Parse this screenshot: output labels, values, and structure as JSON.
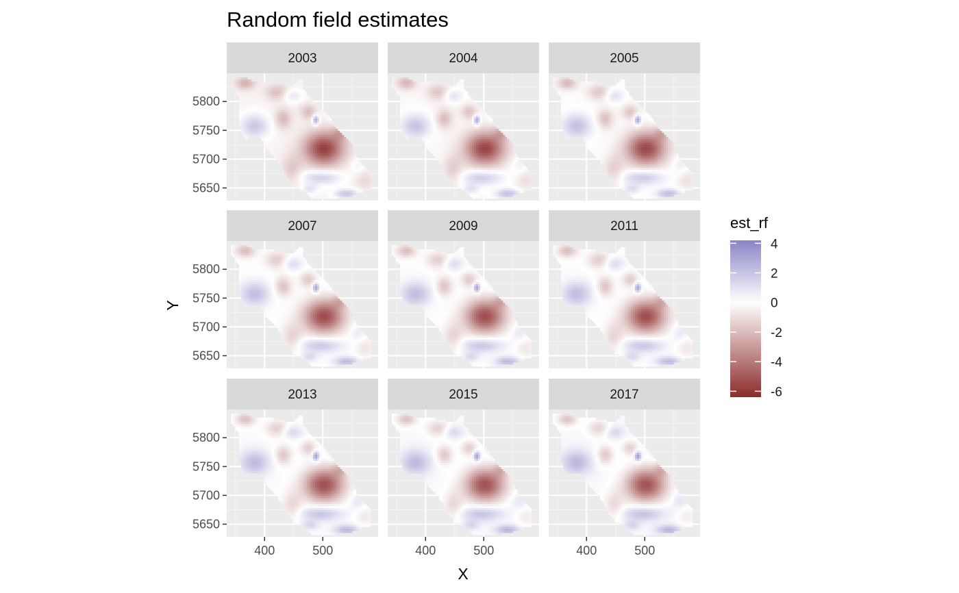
{
  "chart_data": {
    "type": "heatmap",
    "title": "Random field estimates",
    "xlabel": "X",
    "ylabel": "Y",
    "facets": [
      "2003",
      "2004",
      "2005",
      "2007",
      "2009",
      "2011",
      "2013",
      "2015",
      "2017"
    ],
    "xlim": [
      335,
      595
    ],
    "ylim": [
      5628,
      5849
    ],
    "x_ticks": [
      400,
      500
    ],
    "x_tick_labels": [
      "400",
      "500"
    ],
    "y_ticks": [
      5650,
      5700,
      5750,
      5800
    ],
    "y_tick_labels": [
      "5650",
      "5700",
      "5750",
      "5800"
    ],
    "grid": true,
    "legend": {
      "title": "est_rf",
      "position": "right",
      "range": [
        -6.4,
        4.2
      ],
      "ticks": [
        4,
        2,
        0,
        -2,
        -4,
        -6
      ],
      "tick_labels": [
        "4",
        "2",
        "0",
        "-2",
        "-4",
        "-6"
      ],
      "colors": {
        "low": "#8c2a2a",
        "mid": "#ffffff",
        "high": "#8a84c6"
      }
    },
    "region_outline": [
      [
        343,
        5843
      ],
      [
        364,
        5843
      ],
      [
        377,
        5836
      ],
      [
        412,
        5834
      ],
      [
        447,
        5826
      ],
      [
        460,
        5839
      ],
      [
        465,
        5839
      ],
      [
        465,
        5823
      ],
      [
        478,
        5806
      ],
      [
        493,
        5790
      ],
      [
        508,
        5778
      ],
      [
        524,
        5752
      ],
      [
        548,
        5728
      ],
      [
        560,
        5700
      ],
      [
        575,
        5683
      ],
      [
        583,
        5673
      ],
      [
        583,
        5646
      ],
      [
        568,
        5645
      ],
      [
        560,
        5640
      ],
      [
        540,
        5634
      ],
      [
        507,
        5632
      ],
      [
        480,
        5632
      ],
      [
        470,
        5644
      ],
      [
        452,
        5652
      ],
      [
        440,
        5665
      ],
      [
        430,
        5685
      ],
      [
        420,
        5700
      ],
      [
        405,
        5715
      ],
      [
        395,
        5735
      ],
      [
        380,
        5740
      ],
      [
        367,
        5735
      ],
      [
        358,
        5755
      ],
      [
        357,
        5780
      ],
      [
        355,
        5808
      ],
      [
        343,
        5825
      ]
    ],
    "field_components": [
      {
        "name": "negative hotspot (centre)",
        "x": 502,
        "y": 5718,
        "sx": 24,
        "sy": 20,
        "amp": -5.4
      },
      {
        "name": "negative patch (north-west)",
        "x": 367,
        "y": 5832,
        "sx": 12,
        "sy": 8,
        "amp": -2.0
      },
      {
        "name": "negative patch (north)",
        "x": 422,
        "y": 5816,
        "sx": 14,
        "sy": 10,
        "amp": -1.6
      },
      {
        "name": "negative patch (centre-west)",
        "x": 432,
        "y": 5770,
        "sx": 10,
        "sy": 12,
        "amp": -1.8
      },
      {
        "name": "negative patch (upper centre)",
        "x": 475,
        "y": 5782,
        "sx": 10,
        "sy": 9,
        "amp": -1.6
      },
      {
        "name": "negative patch (east)",
        "x": 530,
        "y": 5745,
        "sx": 10,
        "sy": 9,
        "amp": -1.6
      },
      {
        "name": "negative patch (south-west)",
        "x": 447,
        "y": 5682,
        "sx": 12,
        "sy": 18,
        "amp": -1.3
      },
      {
        "name": "negative patch (south-east)",
        "x": 572,
        "y": 5663,
        "sx": 12,
        "sy": 12,
        "amp": -0.8
      },
      {
        "name": "positive patch (west)",
        "x": 383,
        "y": 5757,
        "sx": 18,
        "sy": 15,
        "amp": 2.2
      },
      {
        "name": "positive patch (north)",
        "x": 447,
        "y": 5810,
        "sx": 12,
        "sy": 8,
        "amp": 1.3
      },
      {
        "name": "positive spot (centre-north)",
        "x": 488,
        "y": 5768,
        "sx": 4,
        "sy": 6,
        "amp": 3.4
      },
      {
        "name": "positive patch (east)",
        "x": 523,
        "y": 5775,
        "sx": 9,
        "sy": 8,
        "amp": 1.2
      },
      {
        "name": "positive patch (south)",
        "x": 497,
        "y": 5668,
        "sx": 25,
        "sy": 9,
        "amp": 2.0
      },
      {
        "name": "positive patch (south-east)",
        "x": 541,
        "y": 5640,
        "sx": 15,
        "sy": 6,
        "amp": 2.3
      },
      {
        "name": "positive patch (south-west)",
        "x": 478,
        "y": 5648,
        "sx": 10,
        "sy": 6,
        "amp": 1.2
      },
      {
        "name": "positive patch (far east)",
        "x": 560,
        "y": 5690,
        "sx": 9,
        "sy": 10,
        "amp": 0.8
      }
    ],
    "facet_shifts": [
      -0.35,
      -0.2,
      -0.1,
      0.0,
      0.05,
      0.05,
      0.12,
      0.18,
      0.22
    ]
  }
}
